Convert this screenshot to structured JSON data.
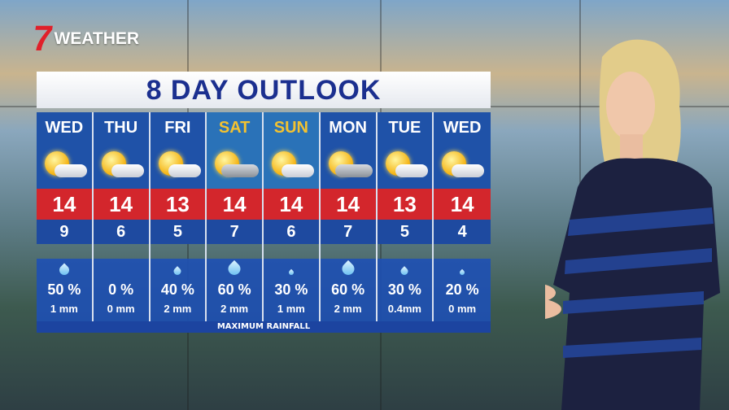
{
  "logo": {
    "mark": "7",
    "text": "WEATHER",
    "mark_color": "#e0202a"
  },
  "title": "8 DAY OUTLOOK",
  "days": [
    {
      "day": "WED",
      "weekend": false,
      "icon": "sun-cloud-icon",
      "max": "14",
      "min": "9",
      "chance": "50 %",
      "rain": "1 mm",
      "drop": "medium"
    },
    {
      "day": "THU",
      "weekend": false,
      "icon": "sun-cloud-icon",
      "max": "14",
      "min": "6",
      "chance": "0 %",
      "rain": "0 mm",
      "drop": "none"
    },
    {
      "day": "FRI",
      "weekend": false,
      "icon": "sun-cloud-icon",
      "max": "13",
      "min": "5",
      "chance": "40 %",
      "rain": "2 mm",
      "drop": "small"
    },
    {
      "day": "SAT",
      "weekend": true,
      "icon": "sun-rain-cloud-icon",
      "max": "14",
      "min": "7",
      "chance": "60 %",
      "rain": "2 mm",
      "drop": "large"
    },
    {
      "day": "SUN",
      "weekend": true,
      "icon": "sun-cloud-icon",
      "max": "14",
      "min": "6",
      "chance": "30 %",
      "rain": "1 mm",
      "drop": "tiny"
    },
    {
      "day": "MON",
      "weekend": false,
      "icon": "sun-rain-cloud-icon",
      "max": "14",
      "min": "7",
      "chance": "60 %",
      "rain": "2 mm",
      "drop": "large"
    },
    {
      "day": "TUE",
      "weekend": false,
      "icon": "sun-cloud-icon",
      "max": "13",
      "min": "5",
      "chance": "30 %",
      "rain": "0.4mm",
      "drop": "small"
    },
    {
      "day": "WED",
      "weekend": false,
      "icon": "sun-cloud-icon",
      "max": "14",
      "min": "4",
      "chance": "20 %",
      "rain": "0 mm",
      "drop": "tiny"
    }
  ],
  "footer": "MAXIMUM RAINFALL",
  "colors": {
    "title_text": "#1b2f8f",
    "max_band": "#d3262c",
    "weekend_day": "#f3c230",
    "panel_blue": "#1f52a8"
  }
}
